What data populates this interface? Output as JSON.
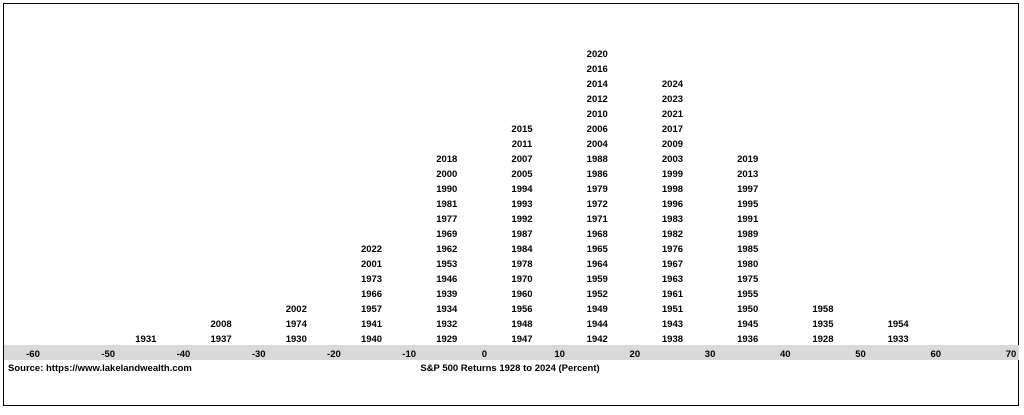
{
  "chart_data": {
    "type": "histogram",
    "xlim": [
      -60,
      70
    ],
    "bin_width": 10,
    "x_ticks": [
      "-60",
      "-50",
      "-40",
      "-30",
      "-20",
      "-10",
      "0",
      "10",
      "20",
      "30",
      "40",
      "50",
      "60",
      "70"
    ],
    "bins": [
      {
        "range": [
          -50,
          -40
        ],
        "years": [
          "1931"
        ]
      },
      {
        "range": [
          -40,
          -30
        ],
        "years": [
          "1937",
          "2008"
        ]
      },
      {
        "range": [
          -30,
          -20
        ],
        "years": [
          "1930",
          "1974",
          "2002"
        ]
      },
      {
        "range": [
          -20,
          -10
        ],
        "years": [
          "1940",
          "1941",
          "1957",
          "1966",
          "1973",
          "2001",
          "2022"
        ]
      },
      {
        "range": [
          -10,
          0
        ],
        "years": [
          "1929",
          "1932",
          "1934",
          "1939",
          "1946",
          "1953",
          "1962",
          "1969",
          "1977",
          "1981",
          "1990",
          "2000",
          "2018"
        ]
      },
      {
        "range": [
          0,
          10
        ],
        "years": [
          "1947",
          "1948",
          "1956",
          "1960",
          "1970",
          "1978",
          "1984",
          "1987",
          "1992",
          "1993",
          "1994",
          "2005",
          "2007",
          "2011",
          "2015"
        ]
      },
      {
        "range": [
          10,
          20
        ],
        "years": [
          "1942",
          "1944",
          "1949",
          "1952",
          "1959",
          "1964",
          "1965",
          "1968",
          "1971",
          "1972",
          "1979",
          "1986",
          "1988",
          "2004",
          "2006",
          "2010",
          "2012",
          "2014",
          "2016",
          "2020"
        ]
      },
      {
        "range": [
          20,
          30
        ],
        "years": [
          "1938",
          "1943",
          "1951",
          "1961",
          "1963",
          "1967",
          "1976",
          "1982",
          "1983",
          "1996",
          "1998",
          "1999",
          "2003",
          "2009",
          "2017",
          "2021",
          "2023",
          "2024"
        ]
      },
      {
        "range": [
          30,
          40
        ],
        "years": [
          "1936",
          "1945",
          "1950",
          "1955",
          "1975",
          "1980",
          "1985",
          "1989",
          "1991",
          "1995",
          "1997",
          "2013",
          "2019"
        ]
      },
      {
        "range": [
          40,
          50
        ],
        "years": [
          "1928",
          "1935",
          "1958"
        ]
      },
      {
        "range": [
          50,
          60
        ],
        "years": [
          "1933",
          "1954"
        ]
      }
    ],
    "xlabel": "S&P 500 Returns 1928 to 2024 (Percent)",
    "source": "Source: https://www.lakelandwealth.com",
    "axis_band_color": "#d9d9d9",
    "text_color": "#000000"
  }
}
